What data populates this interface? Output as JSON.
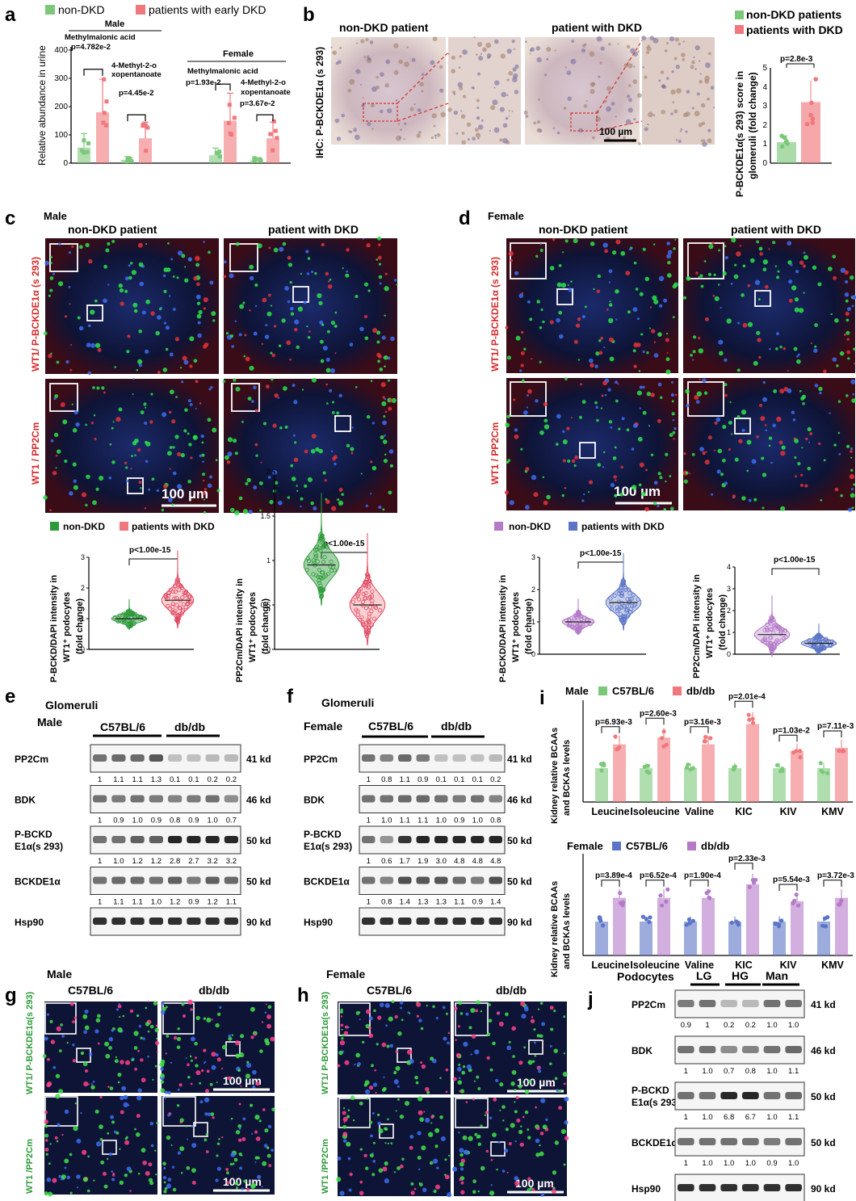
{
  "panel_labels": {
    "a": "a",
    "b": "b",
    "c": "c",
    "d": "d",
    "e": "e",
    "f": "f",
    "g": "g",
    "h": "h",
    "i": "i",
    "j": "j"
  },
  "colors": {
    "green": "#7cc87a",
    "red": "#f0787d",
    "dkgreen": "#2e9a3a",
    "pink": "#e04a63",
    "purple": "#b47ac8",
    "blue": "#5b74c6",
    "micro_bg": "#0d0e20",
    "ihc_bg": "#e6d9d2"
  },
  "panel_a": {
    "legend": [
      "non-DKD",
      "patients with early DKD"
    ],
    "ylabel": "Relative abundance in urine",
    "male_label": "Male",
    "female_label": "Female",
    "metabolites": [
      "Methylmalonic acid",
      "4-Methyl-2-o xopentanoate"
    ],
    "pvalues": [
      "p=4.782e-2",
      "p=4.45e-2",
      "p=1.93e-2",
      "p=3.67e-2"
    ]
  },
  "panel_b": {
    "ylabel_side": "IHC: P-BCKDE1α (s 293)",
    "titles": [
      "non-DKD patient",
      "patient with DKD"
    ],
    "scalebar": "100 µm",
    "legend": [
      "non-DKD patients",
      "patients with DKD"
    ],
    "ylabel": "P-BCKDE1α(s 293) score in glomeruli (fold change)",
    "pvalue": "p=2.8e-3"
  },
  "panel_c": {
    "sex": "Male",
    "titles": [
      "non-DKD patient",
      "patient with DKD"
    ],
    "row_labels": [
      "WT1/ P-BCKDE1α (s 293)",
      "WT1 / PP2Cm"
    ],
    "scalebar": "100 µm",
    "legend": [
      "non-DKD",
      "patients with DKD"
    ],
    "ylabels": [
      "P-BCKD/DAPI intensity in WT1⁺ podocytes (fold change)",
      "PP2Cm/DAPI intensity in WT1⁺ podocytes (fold change)"
    ],
    "pvalues": [
      "p<1.00e-15",
      "p<1.00e-15"
    ]
  },
  "panel_d": {
    "sex": "Female",
    "titles": [
      "non-DKD patient",
      "patient with DKD"
    ],
    "row_labels": [
      "WT1/ P-BCKDE1α (s 293)",
      "WT1 / PP2Cm"
    ],
    "scalebar": "100 µm",
    "legend": [
      "non-DKD",
      "patients with DKD"
    ],
    "ylabels": [
      "P-BCKD/DAPI intensity in WT1⁺ podocytes (fold change)",
      "PP2Cm/DAPI intensity in WT1⁺ podocytes (fold change)"
    ],
    "pvalues": [
      "p<1.00e-15",
      "p<1.00e-15"
    ]
  },
  "panel_e": {
    "title": "Glomeruli",
    "sex": "Male",
    "groups": [
      "C57BL/6",
      "db/db"
    ],
    "rows": [
      {
        "name": "PP2Cm",
        "kd": "41 kd",
        "values": [
          "1",
          "1.1",
          "1.1",
          "1.3",
          "0.1",
          "0.1",
          "0.2",
          "0.2"
        ]
      },
      {
        "name": "BDK",
        "kd": "46 kd",
        "values": [
          "1",
          "0.9",
          "1.0",
          "0.9",
          "0.8",
          "0.9",
          "1.0",
          "0.7"
        ]
      },
      {
        "name": "P-BCKD E1α(s 293)",
        "kd": "50 kd",
        "values": [
          "1",
          "1.0",
          "1.2",
          "1.2",
          "2.8",
          "2.7",
          "3.2",
          "3.2"
        ]
      },
      {
        "name": "BCKDE1α",
        "kd": "50 kd",
        "values": [
          "1",
          "1.1",
          "1.1",
          "1.0",
          "1.2",
          "0.9",
          "1.2",
          "1.1"
        ]
      },
      {
        "name": "Hsp90",
        "kd": "90 kd",
        "values": []
      }
    ]
  },
  "panel_f": {
    "title": "Glomeruli",
    "sex": "Female",
    "groups": [
      "C57BL/6",
      "db/db"
    ],
    "rows": [
      {
        "name": "PP2Cm",
        "kd": "41 kd",
        "values": [
          "1",
          "0.8",
          "1.1",
          "0.9",
          "0.1",
          "0.1",
          "0.1",
          "0.2"
        ]
      },
      {
        "name": "BDK",
        "kd": "46 kd",
        "values": [
          "1",
          "1.0",
          "1.1",
          "1.1",
          "1.0",
          "0.9",
          "1.0",
          "0.8"
        ]
      },
      {
        "name": "P-BCKD E1α(s 293)",
        "kd": "50 kd",
        "values": [
          "1",
          "0.6",
          "1.7",
          "1.9",
          "3.0",
          "4.8",
          "4.8",
          "4.8"
        ]
      },
      {
        "name": "BCKDE1α",
        "kd": "50 kd",
        "values": [
          "1",
          "0.8",
          "1.4",
          "1.3",
          "1.3",
          "1.1",
          "0.9",
          "1.4"
        ]
      },
      {
        "name": "Hsp90",
        "kd": "90 kd",
        "values": []
      }
    ]
  },
  "panel_g": {
    "sex": "Male",
    "titles": [
      "C57BL/6",
      "db/db"
    ],
    "row_labels": [
      "WT1/ P-BCKDE1α(s 293)",
      "WT1 /PP2Cm"
    ],
    "scalebar": "100 µm"
  },
  "panel_h": {
    "sex": "Female",
    "titles": [
      "C57BL/6",
      "db/db"
    ],
    "row_labels": [
      "WT1/ P-BCKDE1α(s 293)",
      "WT1 /PP2Cm"
    ],
    "scalebar": "100 µm"
  },
  "panel_i": {
    "ylabel": "Kidney relative BCAAs and BCKAs levels",
    "categories": [
      "Leucine",
      "Isoleucine",
      "Valine",
      "KIC",
      "KIV",
      "KMV"
    ],
    "male": {
      "sex": "Male",
      "legend": [
        "C57BL/6",
        "db/db"
      ],
      "pvalues": [
        "p=6.93e-3",
        "p=2.60e-3",
        "p=3.16e-3",
        "p=2.01e-4",
        "p=1.03e-2",
        "p=7.11e-3"
      ]
    },
    "female": {
      "sex": "Female",
      "legend": [
        "C57BL/6",
        "db/db"
      ],
      "pvalues": [
        "p=3.89e-4",
        "p=6.52e-4",
        "p=1.90e-4",
        "p=2.33e-3",
        "p=5.54e-3",
        "p=3.72e-3"
      ]
    }
  },
  "panel_j": {
    "title": "Podocytes",
    "groups": [
      "LG",
      "HG",
      "Man"
    ],
    "rows": [
      {
        "name": "PP2Cm",
        "kd": "41 kd",
        "values": [
          "0.9",
          "1",
          "0.2",
          "0.2",
          "1.0",
          "1.0"
        ]
      },
      {
        "name": "BDK",
        "kd": "46 kd",
        "values": [
          "1",
          "1.0",
          "0.7",
          "0.8",
          "1.0",
          "1.1"
        ]
      },
      {
        "name": "P-BCKD E1α(s 293)",
        "kd": "50 kd",
        "values": [
          "1",
          "1.0",
          "6.8",
          "6.7",
          "1.0",
          "1.1"
        ]
      },
      {
        "name": "BCKDE1α",
        "kd": "50 kd",
        "values": [
          "1",
          "1.0",
          "1.0",
          "1.0",
          "0.9",
          "1.0"
        ]
      },
      {
        "name": "Hsp90",
        "kd": "90 kd",
        "values": []
      }
    ]
  },
  "chart_data": [
    {
      "panel": "a",
      "type": "bar",
      "categories": [
        "Male Methylmalonic acid",
        "Male 4-Methyl-2-oxopentanoate",
        "Female Methylmalonic acid",
        "Female 4-Methyl-2-oxopentanoate"
      ],
      "series": [
        {
          "name": "non-DKD",
          "values": [
            55,
            12,
            28,
            10
          ]
        },
        {
          "name": "patients with early DKD",
          "values": [
            180,
            88,
            150,
            88
          ]
        }
      ],
      "ylabel": "Relative abundance in urine",
      "ylim": [
        0,
        400
      ]
    },
    {
      "panel": "b",
      "type": "bar",
      "categories": [
        "non-DKD patients",
        "patients with DKD"
      ],
      "values": [
        1.1,
        3.2
      ],
      "ylim": [
        0,
        5
      ]
    },
    {
      "panel": "i-male",
      "type": "bar",
      "categories": [
        "Leucine",
        "Isoleucine",
        "Valine",
        "KIC",
        "KIV",
        "KMV"
      ],
      "series": [
        {
          "name": "C57BL/6",
          "values": [
            1,
            1,
            1,
            1,
            1,
            1
          ]
        },
        {
          "name": "db/db",
          "values": [
            1.7,
            1.9,
            1.7,
            2.3,
            1.5,
            1.6
          ]
        }
      ],
      "ylim": [
        0,
        3
      ]
    },
    {
      "panel": "i-female",
      "type": "bar",
      "categories": [
        "Leucine",
        "Isoleucine",
        "Valine",
        "KIC",
        "KIV",
        "KMV"
      ],
      "series": [
        {
          "name": "C57BL/6",
          "values": [
            1,
            1,
            1,
            1,
            1,
            1
          ]
        },
        {
          "name": "db/db",
          "values": [
            1.7,
            1.7,
            1.7,
            2.1,
            1.6,
            1.7
          ]
        }
      ],
      "ylim": [
        0,
        3
      ]
    }
  ]
}
